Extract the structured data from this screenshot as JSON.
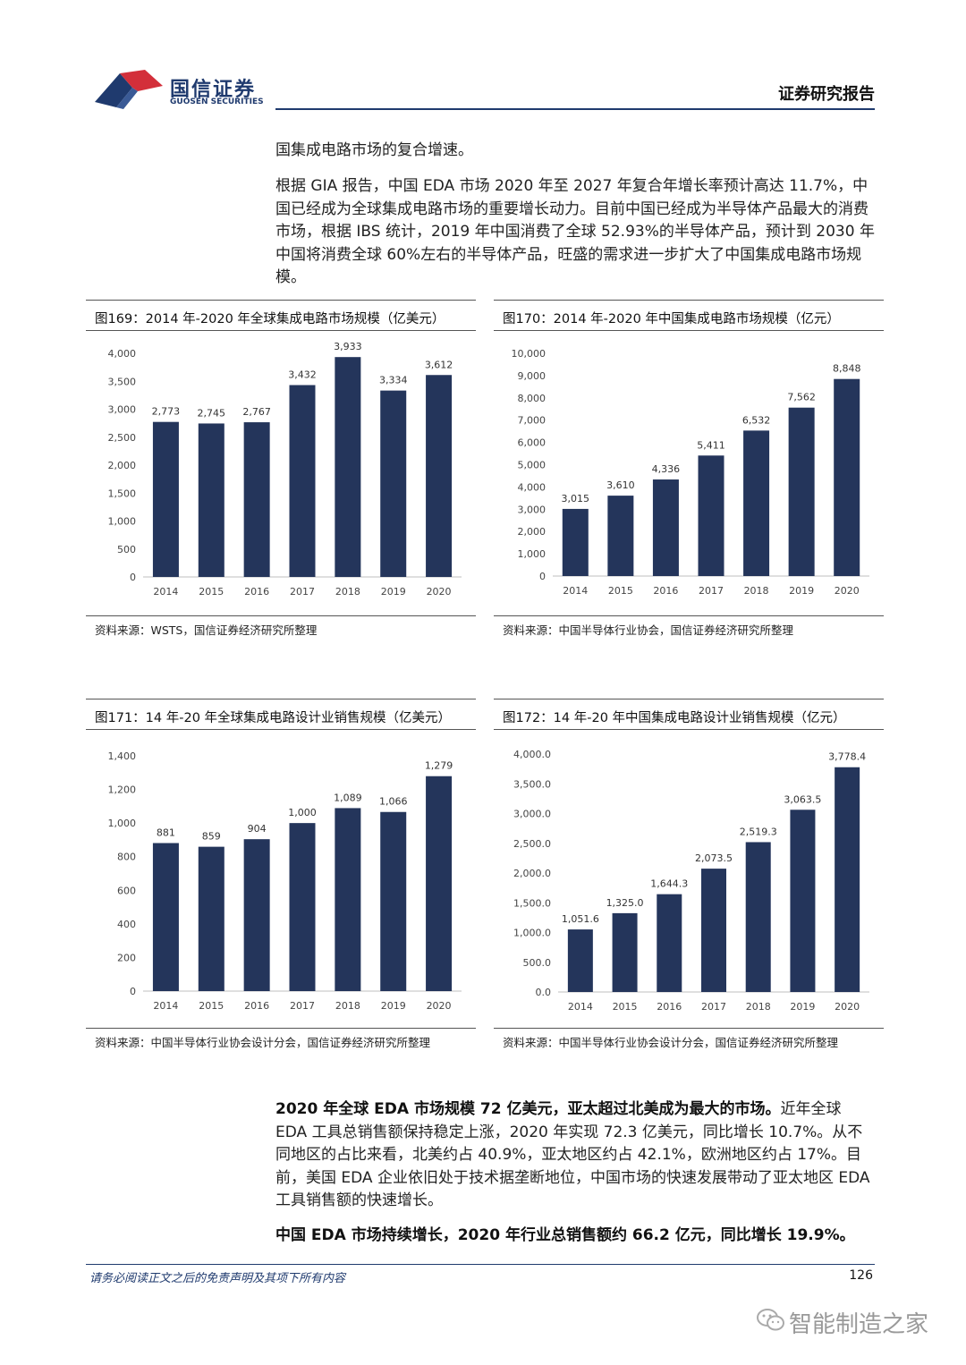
{
  "header": {
    "logo_text": "国信证券",
    "logo_sub": "GUOSEN SECURITIES",
    "report_label": "证券研究报告",
    "colors": {
      "navy": "#1f3a6e",
      "red": "#d32f3a"
    }
  },
  "paragraphs": {
    "p1": "国集成电路市场的复合增速。",
    "p2": "根据 GIA 报告，中国 EDA 市场 2020 年至 2027 年复合年增长率预计高达 11.7%，中国已经成为全球集成电路市场的重要增长动力。目前中国已经成为半导体产品最大的消费市场，根据 IBS 统计，2019 年中国消费了全球 52.93%的半导体产品，预计到 2030 年中国将消费全球 60%左右的半导体产品，旺盛的需求进一步扩大了中国集成电路市场规模。",
    "p3_bold": "2020 年全球 EDA 市场规模 72 亿美元，亚太超过北美成为最大的市场。",
    "p3_rest": "近年全球 EDA 工具总销售额保持稳定上涨，2020 年实现 72.3 亿美元，同比增长 10.7%。从不同地区的占比来看，北美约占 40.9%，亚太地区约占 42.1%，欧洲地区约占 17%。目前，美国 EDA 企业依旧处于技术据垄断地位，中国市场的快速发展带动了亚太地区 EDA 工具销售额的快速增长。",
    "p4_bold": "中国 EDA 市场持续增长，2020 年行业总销售额约 66.2 亿元，同比增长 19.9%。"
  },
  "chart_data": [
    {
      "type": "bar",
      "title": "图169：2014 年-2020 年全球集成电路市场规模（亿美元）",
      "source": "资料来源：WSTS，国信证券经济研究所整理",
      "categories": [
        "2014",
        "2015",
        "2016",
        "2017",
        "2018",
        "2019",
        "2020"
      ],
      "values": [
        2773,
        2745,
        2767,
        3432,
        3933,
        3334,
        3612
      ],
      "value_labels": [
        "2,773",
        "2,745",
        "2,767",
        "3,432",
        "3,933",
        "3,334",
        "3,612"
      ],
      "ylim": [
        0,
        4000
      ],
      "yticks": [
        "0",
        "500",
        "1,000",
        "1,500",
        "2,000",
        "2,500",
        "3,000",
        "3,500",
        "4,000"
      ],
      "bar_color": "#24355b",
      "grid": false
    },
    {
      "type": "bar",
      "title": "图170：2014 年-2020 年中国集成电路市场规模（亿元）",
      "source": "资料来源：中国半导体行业协会，国信证券经济研究所整理",
      "categories": [
        "2014",
        "2015",
        "2016",
        "2017",
        "2018",
        "2019",
        "2020"
      ],
      "values": [
        3015,
        3610,
        4336,
        5411,
        6532,
        7562,
        8848
      ],
      "value_labels": [
        "3,015",
        "3,610",
        "4,336",
        "5,411",
        "6,532",
        "7,562",
        "8,848"
      ],
      "ylim": [
        0,
        10000
      ],
      "yticks": [
        "0",
        "1,000",
        "2,000",
        "3,000",
        "4,000",
        "5,000",
        "6,000",
        "7,000",
        "8,000",
        "9,000",
        "10,000"
      ],
      "bar_color": "#24355b",
      "grid": false
    },
    {
      "type": "bar",
      "title": "图171：14 年-20 年全球集成电路设计业销售规模（亿美元）",
      "source": "资料来源：中国半导体行业协会设计分会，国信证券经济研究所整理",
      "categories": [
        "2014",
        "2015",
        "2016",
        "2017",
        "2018",
        "2019",
        "2020"
      ],
      "values": [
        881,
        859,
        904,
        1000,
        1089,
        1066,
        1279
      ],
      "value_labels": [
        "881",
        "859",
        "904",
        "1,000",
        "1,089",
        "1,066",
        "1,279"
      ],
      "ylim": [
        0,
        1400
      ],
      "yticks": [
        "0",
        "200",
        "400",
        "600",
        "800",
        "1,000",
        "1,200",
        "1,400"
      ],
      "bar_color": "#24355b",
      "grid": false
    },
    {
      "type": "bar",
      "title": "图172：14 年-20 年中国集成电路设计业销售规模（亿元）",
      "source": "资料来源：中国半导体行业协会设计分会，国信证券经济研究所整理",
      "categories": [
        "2014",
        "2015",
        "2016",
        "2017",
        "2018",
        "2019",
        "2020"
      ],
      "values": [
        1051.6,
        1325.0,
        1644.3,
        2073.5,
        2519.3,
        3063.5,
        3778.4
      ],
      "value_labels": [
        "1,051.6",
        "1,325.0",
        "1,644.3",
        "2,073.5",
        "2,519.3",
        "3,063.5",
        "3,778.4"
      ],
      "ylim": [
        0,
        4000
      ],
      "yticks": [
        "0.0",
        "500.0",
        "1,000.0",
        "1,500.0",
        "2,000.0",
        "2,500.0",
        "3,000.0",
        "3,500.0",
        "4,000.0"
      ],
      "bar_color": "#24355b",
      "grid": false
    }
  ],
  "footer": {
    "disclaimer": "请务必阅读正文之后的免责声明及其项下所有内容",
    "page_number": "126",
    "watermark": "智能制造之家"
  }
}
